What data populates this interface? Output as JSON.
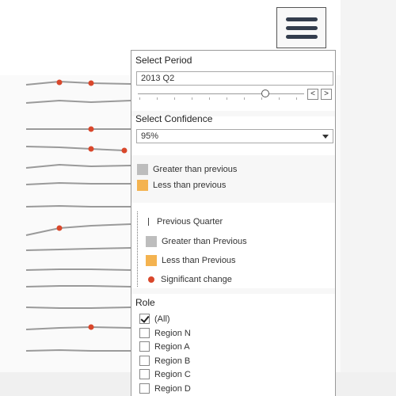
{
  "menu": {
    "icon": "hamburger-menu-icon"
  },
  "period": {
    "title": "Select Period",
    "value": "2013 Q2",
    "prev_label": "<",
    "next_label": ">"
  },
  "confidence": {
    "title": "Select Confidence",
    "value": "95%"
  },
  "color_legend": [
    {
      "label": "Greater than previous",
      "color": "#bdbdbd"
    },
    {
      "label": "Less than previous",
      "color": "#f4b350"
    }
  ],
  "mark_legend": {
    "previous_quarter": "Previous Quarter",
    "greater": "Greater than Previous",
    "less": "Less than Previous",
    "significant": "Significant change",
    "significant_color": "#d9472b"
  },
  "role": {
    "title": "Role",
    "options": [
      {
        "label": "(All)",
        "checked": true
      },
      {
        "label": "Region N",
        "checked": false
      },
      {
        "label": "Region A",
        "checked": false
      },
      {
        "label": "Region B",
        "checked": false
      },
      {
        "label": "Region C",
        "checked": false
      },
      {
        "label": "Region D",
        "checked": false
      }
    ]
  }
}
